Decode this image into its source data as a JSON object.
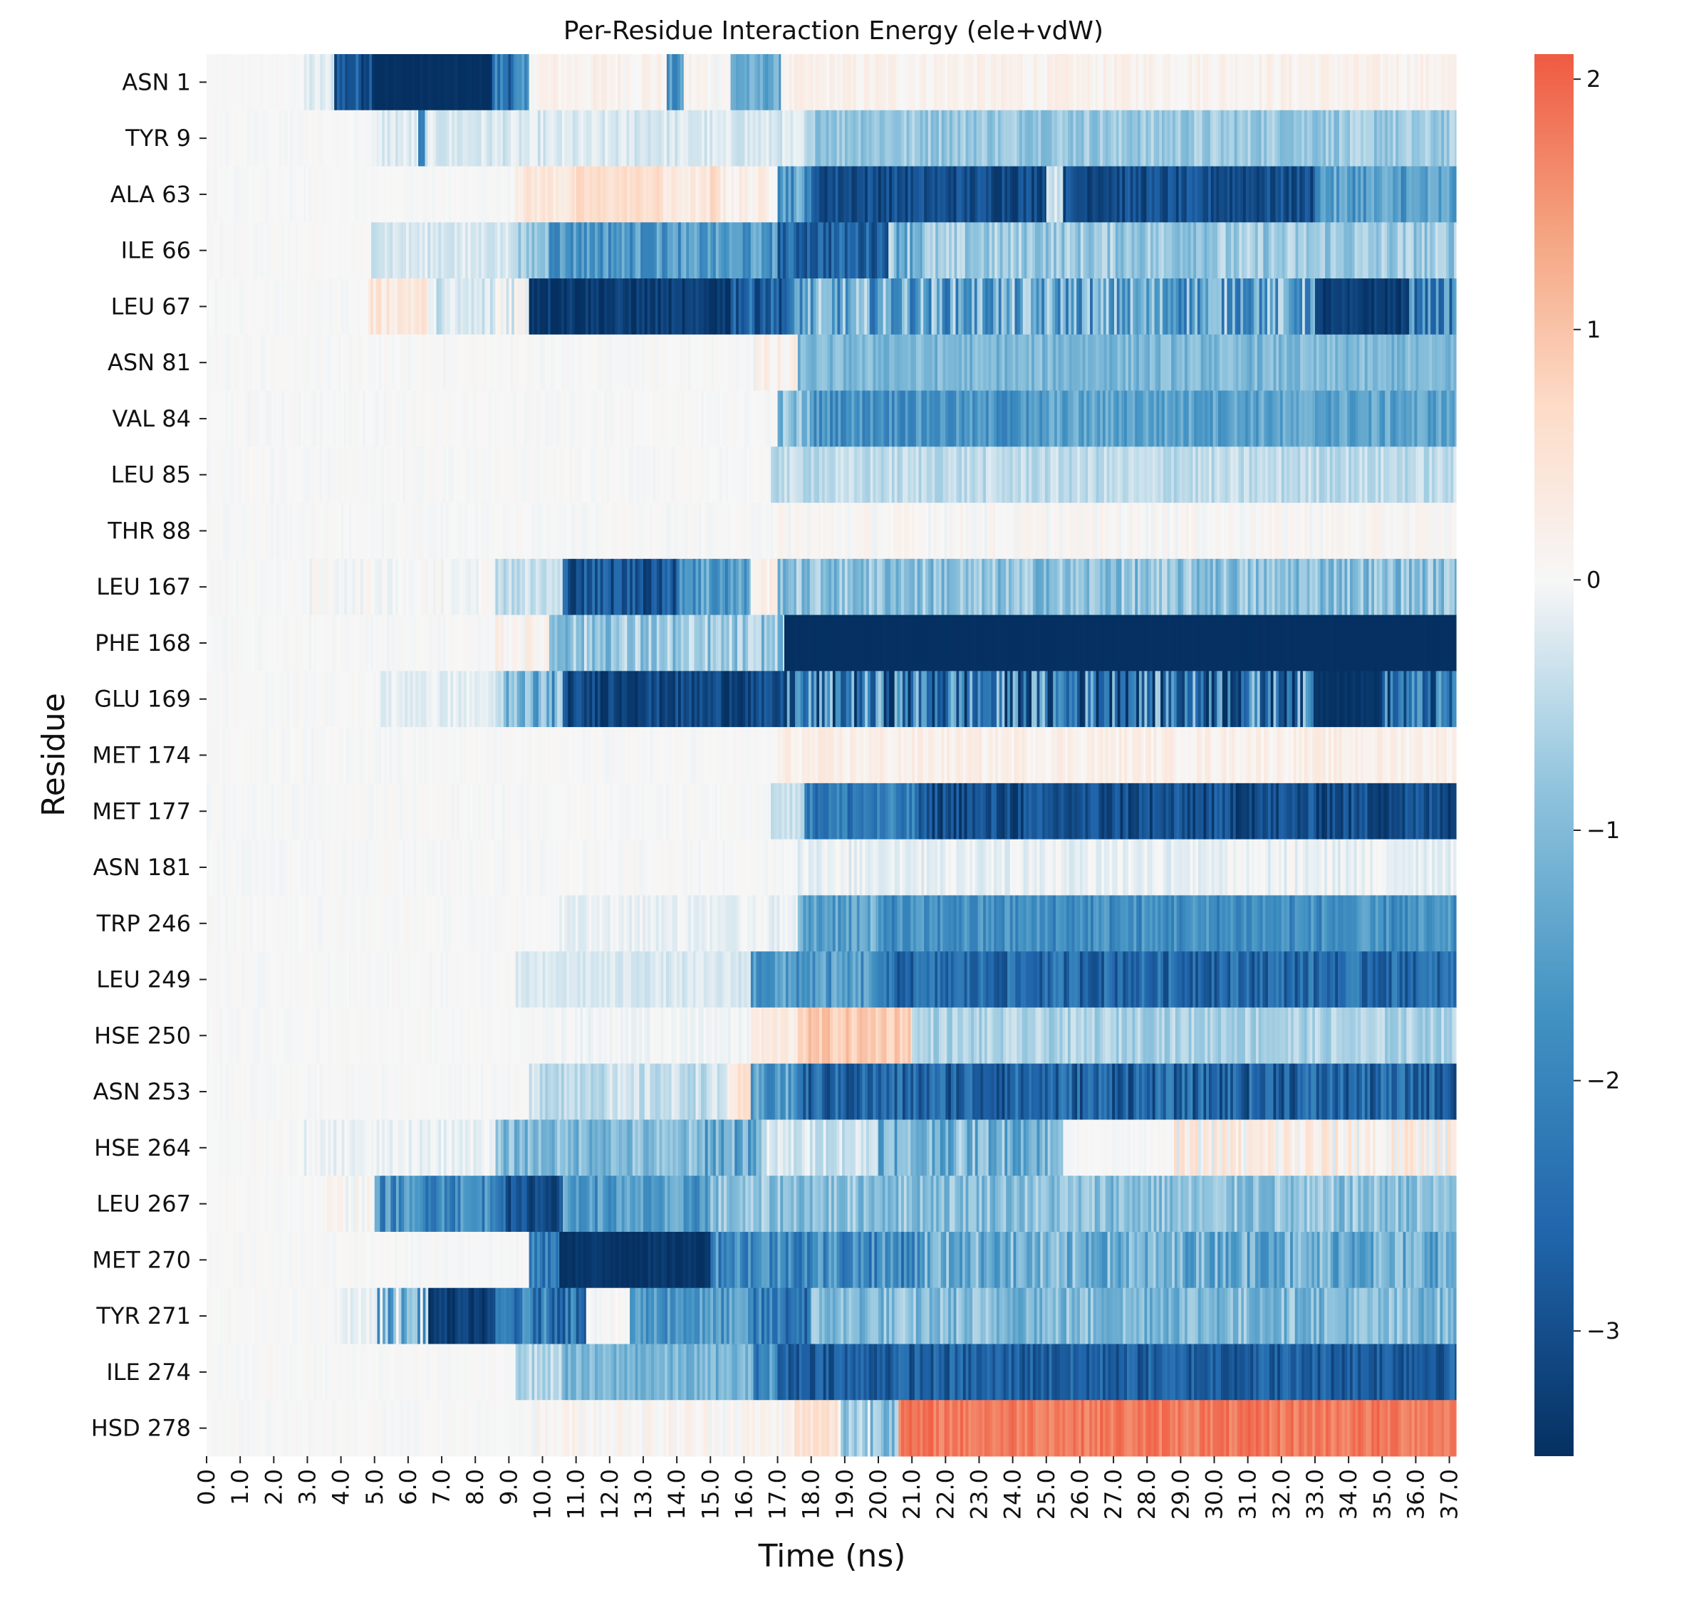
{
  "chart_data": {
    "type": "heatmap",
    "title": "Per-Residue Interaction Energy (ele+vdW)",
    "xlabel": "Time (ns)",
    "ylabel": "Residue",
    "x_ticks": [
      "0.0",
      "1.0",
      "2.0",
      "3.0",
      "4.0",
      "5.0",
      "6.0",
      "7.0",
      "8.0",
      "9.0",
      "10.0",
      "11.0",
      "12.0",
      "13.0",
      "14.0",
      "15.0",
      "16.0",
      "17.0",
      "18.0",
      "19.0",
      "20.0",
      "21.0",
      "22.0",
      "23.0",
      "24.0",
      "25.0",
      "26.0",
      "27.0",
      "28.0",
      "29.0",
      "30.0",
      "31.0",
      "32.0",
      "33.0",
      "34.0",
      "35.0",
      "36.0",
      "37.0"
    ],
    "xlim": [
      0,
      37.2
    ],
    "colorbar": {
      "vmin": -3.5,
      "vmax": 2.1,
      "ticks": [
        2,
        1,
        0,
        -1,
        -2,
        -3
      ],
      "tick_labels": [
        "2",
        "1",
        "0",
        "−1",
        "−2",
        "−3"
      ],
      "colormap": "RdBu_r"
    },
    "residues": [
      "ASN 1",
      "TYR 9",
      "ALA 63",
      "ILE 66",
      "LEU 67",
      "ASN 81",
      "VAL 84",
      "LEU 85",
      "THR 88",
      "LEU 167",
      "PHE 168",
      "GLU 169",
      "MET 174",
      "MET 177",
      "ASN 181",
      "TRP 246",
      "LEU 249",
      "HSE 250",
      "ASN 253",
      "HSE 264",
      "LEU 267",
      "MET 270",
      "TYR 271",
      "ILE 274",
      "HSD 278"
    ],
    "segments": [
      [
        [
          0,
          2.9,
          0,
          0.05
        ],
        [
          2.9,
          3.8,
          -0.2,
          0.2
        ],
        [
          3.8,
          5.0,
          -2.8,
          0.6
        ],
        [
          5.0,
          8.5,
          -3.5,
          0.1
        ],
        [
          8.5,
          9.6,
          -2.2,
          0.8
        ],
        [
          9.6,
          13.7,
          0.15,
          0.2
        ],
        [
          13.7,
          14.2,
          -1.8,
          0.6
        ],
        [
          14.2,
          15.6,
          0.1,
          0.2
        ],
        [
          15.6,
          17.1,
          -1.3,
          0.4
        ],
        [
          17.1,
          37.2,
          0.15,
          0.18
        ]
      ],
      [
        [
          0,
          4.9,
          0,
          0.05
        ],
        [
          4.9,
          6.3,
          -0.2,
          0.2
        ],
        [
          6.3,
          6.5,
          -2.2,
          0.2
        ],
        [
          6.5,
          17.8,
          -0.25,
          0.2
        ],
        [
          17.8,
          37.2,
          -0.75,
          0.35
        ]
      ],
      [
        [
          0,
          9.2,
          0,
          0.05
        ],
        [
          9.2,
          11.0,
          0.4,
          0.25
        ],
        [
          11.0,
          13.6,
          0.6,
          0.2
        ],
        [
          13.6,
          15.0,
          0.3,
          0.2
        ],
        [
          15.0,
          15.3,
          0.7,
          0.2
        ],
        [
          15.3,
          17.0,
          0.2,
          0.25
        ],
        [
          17.0,
          18.0,
          -1.5,
          0.8
        ],
        [
          18.0,
          25.0,
          -3.0,
          0.4
        ],
        [
          25.0,
          25.5,
          -0.3,
          0.2
        ],
        [
          25.5,
          33.0,
          -3.0,
          0.4
        ],
        [
          33.0,
          37.2,
          -1.5,
          0.6
        ]
      ],
      [
        [
          0,
          4.9,
          0,
          0.05
        ],
        [
          4.9,
          9.2,
          -0.25,
          0.2
        ],
        [
          9.2,
          10.2,
          -0.8,
          0.4
        ],
        [
          10.2,
          17.0,
          -1.6,
          0.6
        ],
        [
          17.0,
          20.3,
          -2.6,
          0.6
        ],
        [
          20.3,
          21.3,
          -1.0,
          0.8
        ],
        [
          21.3,
          37.2,
          -0.75,
          0.45
        ]
      ],
      [
        [
          0,
          4.8,
          0,
          0.05
        ],
        [
          4.8,
          6.6,
          0.4,
          0.3
        ],
        [
          6.6,
          8.6,
          -0.3,
          0.3
        ],
        [
          8.6,
          9.6,
          0.0,
          0.5
        ],
        [
          9.6,
          15.6,
          -3.3,
          0.3
        ],
        [
          15.6,
          17.5,
          -2.6,
          0.7
        ],
        [
          17.5,
          33.0,
          -1.4,
          1.1
        ],
        [
          33.0,
          35.8,
          -3.3,
          0.25
        ],
        [
          35.8,
          37.2,
          -2.0,
          0.9
        ]
      ],
      [
        [
          0,
          16.2,
          0,
          0.06
        ],
        [
          16.2,
          17.6,
          0.1,
          0.3
        ],
        [
          17.6,
          37.2,
          -1.05,
          0.35
        ]
      ],
      [
        [
          0,
          17.0,
          0,
          0.06
        ],
        [
          17.0,
          18.0,
          -1.0,
          0.6
        ],
        [
          18.0,
          25.0,
          -1.7,
          0.5
        ],
        [
          25.0,
          37.2,
          -1.4,
          0.45
        ]
      ],
      [
        [
          0,
          16.8,
          0,
          0.06
        ],
        [
          16.8,
          37.2,
          -0.45,
          0.25
        ]
      ],
      [
        [
          0,
          17.0,
          0,
          0.06
        ],
        [
          17.0,
          37.2,
          0.05,
          0.15
        ]
      ],
      [
        [
          0,
          2.9,
          0,
          0.05
        ],
        [
          2.9,
          8.6,
          0.0,
          0.15
        ],
        [
          8.6,
          10.6,
          -0.4,
          0.3
        ],
        [
          10.6,
          14.0,
          -2.8,
          0.6
        ],
        [
          14.0,
          16.2,
          -1.5,
          0.8
        ],
        [
          16.2,
          17.0,
          0.2,
          0.2
        ],
        [
          17.0,
          37.2,
          -0.9,
          0.55
        ]
      ],
      [
        [
          0,
          8.6,
          0,
          0.06
        ],
        [
          8.6,
          10.2,
          0.15,
          0.25
        ],
        [
          10.2,
          17.2,
          -0.8,
          0.6
        ],
        [
          17.2,
          37.2,
          -3.5,
          0.02
        ]
      ],
      [
        [
          0,
          5.1,
          0,
          0.05
        ],
        [
          5.1,
          8.6,
          -0.15,
          0.15
        ],
        [
          8.6,
          10.6,
          -1.2,
          1.0
        ],
        [
          10.6,
          17.2,
          -3.1,
          0.4
        ],
        [
          17.2,
          33.0,
          -2.2,
          1.6
        ],
        [
          33.0,
          35.0,
          -3.4,
          0.1
        ],
        [
          35.0,
          37.2,
          -2.4,
          1.2
        ]
      ],
      [
        [
          0,
          17.0,
          0,
          0.06
        ],
        [
          17.0,
          37.2,
          0.2,
          0.2
        ]
      ],
      [
        [
          0,
          16.8,
          0,
          0.06
        ],
        [
          16.8,
          17.8,
          -0.35,
          0.2
        ],
        [
          17.8,
          21.2,
          -2.2,
          0.6
        ],
        [
          21.2,
          37.2,
          -3.0,
          0.5
        ]
      ],
      [
        [
          0,
          17.6,
          0,
          0.06
        ],
        [
          17.6,
          37.2,
          -0.1,
          0.2
        ]
      ],
      [
        [
          0,
          10.5,
          0,
          0.05
        ],
        [
          10.5,
          17.6,
          -0.1,
          0.15
        ],
        [
          17.6,
          20.0,
          -1.4,
          0.6
        ],
        [
          20.0,
          37.2,
          -1.8,
          0.5
        ]
      ],
      [
        [
          0,
          9.2,
          0,
          0.05
        ],
        [
          9.2,
          16.2,
          -0.25,
          0.15
        ],
        [
          16.2,
          20.0,
          -1.6,
          0.6
        ],
        [
          20.0,
          37.2,
          -2.5,
          0.6
        ]
      ],
      [
        [
          0,
          10.0,
          0,
          0.05
        ],
        [
          10.0,
          16.2,
          -0.05,
          0.1
        ],
        [
          16.2,
          17.6,
          0.3,
          0.2
        ],
        [
          17.6,
          21.0,
          0.9,
          0.3
        ],
        [
          21.0,
          37.2,
          -0.6,
          0.3
        ]
      ],
      [
        [
          0,
          9.6,
          0,
          0.05
        ],
        [
          9.6,
          15.5,
          -0.4,
          0.3
        ],
        [
          15.5,
          16.2,
          0.4,
          0.3
        ],
        [
          16.2,
          17.6,
          -1.6,
          0.7
        ],
        [
          17.6,
          37.2,
          -2.6,
          0.7
        ]
      ],
      [
        [
          0,
          2.9,
          0,
          0.05
        ],
        [
          2.9,
          8.6,
          -0.1,
          0.15
        ],
        [
          8.6,
          14.6,
          -1.0,
          0.5
        ],
        [
          14.6,
          16.6,
          -1.2,
          0.8
        ],
        [
          16.6,
          20.0,
          -0.3,
          0.3
        ],
        [
          20.0,
          25.5,
          -1.1,
          0.7
        ],
        [
          25.5,
          28.8,
          0.0,
          0.06
        ],
        [
          28.8,
          37.2,
          0.2,
          0.5
        ]
      ],
      [
        [
          0,
          3.5,
          0,
          0.05
        ],
        [
          3.5,
          5.0,
          0.05,
          0.2
        ],
        [
          5.0,
          8.9,
          -1.8,
          0.7
        ],
        [
          8.9,
          10.6,
          -3.0,
          0.4
        ],
        [
          10.6,
          15.0,
          -1.6,
          0.6
        ],
        [
          15.0,
          37.2,
          -0.9,
          0.5
        ]
      ],
      [
        [
          0,
          9.6,
          0,
          0.06
        ],
        [
          9.6,
          10.5,
          -2.2,
          0.6
        ],
        [
          10.5,
          15.0,
          -3.4,
          0.15
        ],
        [
          15.0,
          21.3,
          -1.8,
          0.8
        ],
        [
          21.3,
          37.2,
          -1.2,
          0.7
        ]
      ],
      [
        [
          0,
          3.8,
          0,
          0.05
        ],
        [
          3.8,
          5.0,
          -0.1,
          0.15
        ],
        [
          5.0,
          6.6,
          -1.0,
          1.1
        ],
        [
          6.6,
          8.6,
          -3.3,
          0.3
        ],
        [
          8.6,
          11.3,
          -2.2,
          0.8
        ],
        [
          11.3,
          12.6,
          0.0,
          0.1
        ],
        [
          12.6,
          16.2,
          -1.6,
          0.6
        ],
        [
          16.2,
          18.0,
          -2.2,
          0.8
        ],
        [
          18.0,
          37.2,
          -1.0,
          0.55
        ]
      ],
      [
        [
          0,
          9.2,
          0,
          0.05
        ],
        [
          9.2,
          10.6,
          -0.5,
          0.3
        ],
        [
          10.6,
          16.2,
          -1.1,
          0.4
        ],
        [
          16.2,
          17.0,
          -1.8,
          0.8
        ],
        [
          17.0,
          37.2,
          -2.7,
          0.5
        ]
      ],
      [
        [
          0,
          9.6,
          0,
          0.05
        ],
        [
          9.6,
          17.5,
          0.1,
          0.2
        ],
        [
          17.5,
          18.8,
          0.5,
          0.3
        ],
        [
          18.8,
          20.6,
          -0.6,
          0.8
        ],
        [
          20.6,
          37.2,
          1.8,
          0.25
        ]
      ]
    ]
  }
}
